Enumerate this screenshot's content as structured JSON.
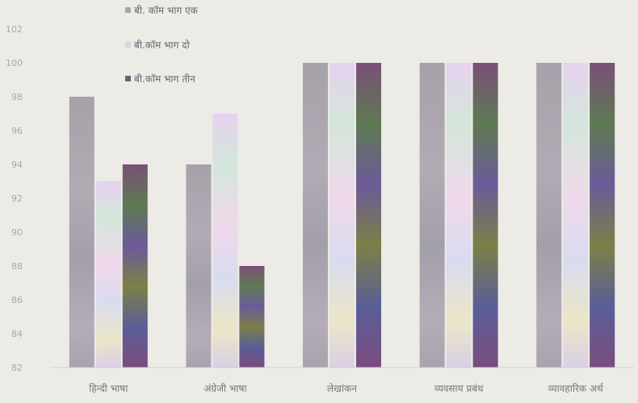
{
  "chart_data": {
    "type": "bar",
    "title": "",
    "xlabel": "",
    "ylabel": "",
    "ylim": [
      82,
      102
    ],
    "yticks": [
      82,
      84,
      86,
      88,
      90,
      92,
      94,
      96,
      98,
      100,
      102
    ],
    "grid": false,
    "legend_position": "top-left",
    "categories": [
      "हिन्दी भाषा",
      "अंग्रेजी भाषा",
      "लेखांकन",
      "व्यवसाय प्रबंध",
      "व्यावहारिक अर्थ"
    ],
    "series": [
      {
        "name": "बी. कॉम भाग एक",
        "color": "#a9a5ad",
        "values": [
          98,
          94,
          100,
          100,
          100
        ]
      },
      {
        "name": "बी.कॉम भाग दो",
        "color": "#dcd3e6",
        "values": [
          93,
          97,
          100,
          100,
          100
        ]
      },
      {
        "name": "बी.कॉम भाग तीन",
        "color": "#6b5f7e",
        "values": [
          94,
          88,
          100,
          100,
          100
        ]
      }
    ]
  }
}
